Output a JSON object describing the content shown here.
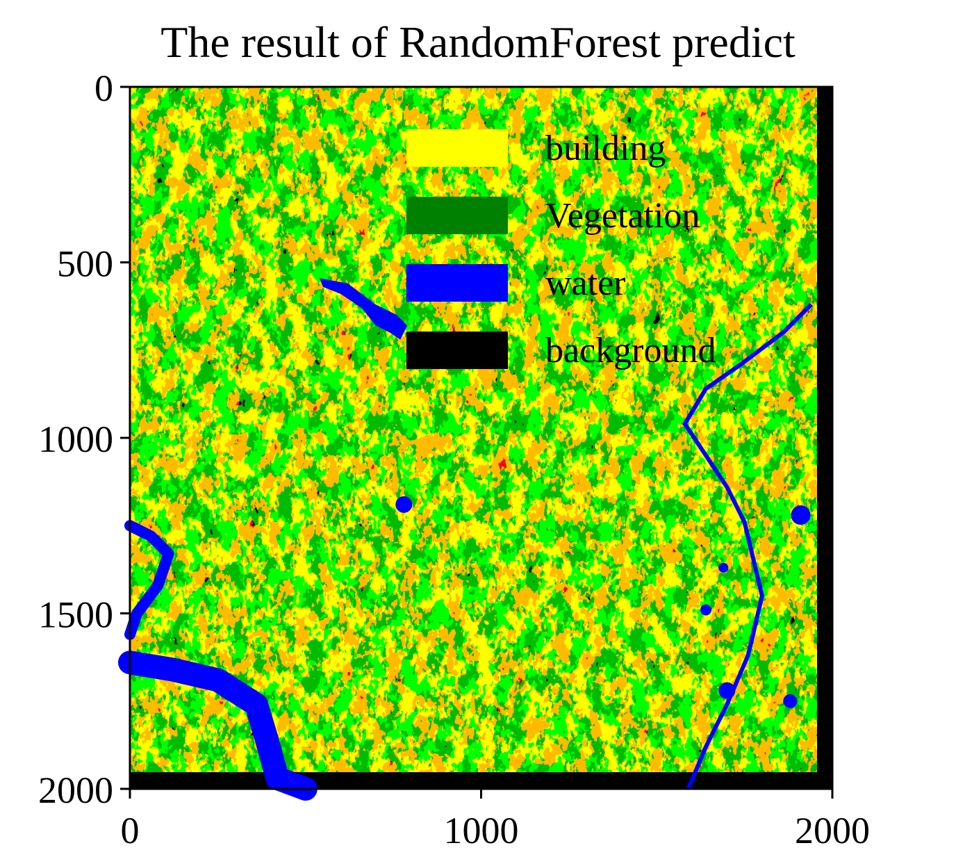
{
  "chart_data": {
    "type": "heatmap",
    "title": "The result of RandomForest predict",
    "xlabel": "",
    "ylabel": "",
    "xlim": [
      0,
      2000
    ],
    "ylim": [
      2000,
      0
    ],
    "x_ticks": [
      0,
      1000,
      2000
    ],
    "y_ticks": [
      0,
      500,
      1000,
      1500,
      2000
    ],
    "x_tick_labels": [
      "0",
      "1000",
      "2000"
    ],
    "y_tick_labels": [
      "0",
      "500",
      "1000",
      "1500",
      "2000"
    ],
    "classes": [
      {
        "name": "building",
        "color": "#ffff00"
      },
      {
        "name": "Vegetation",
        "color": "#008000"
      },
      {
        "name": "water",
        "color": "#0000ff"
      },
      {
        "name": "background",
        "color": "#000000"
      }
    ],
    "legend_position": "top-right",
    "grid": false,
    "image_extent": [
      0,
      2000,
      2000,
      0
    ]
  }
}
